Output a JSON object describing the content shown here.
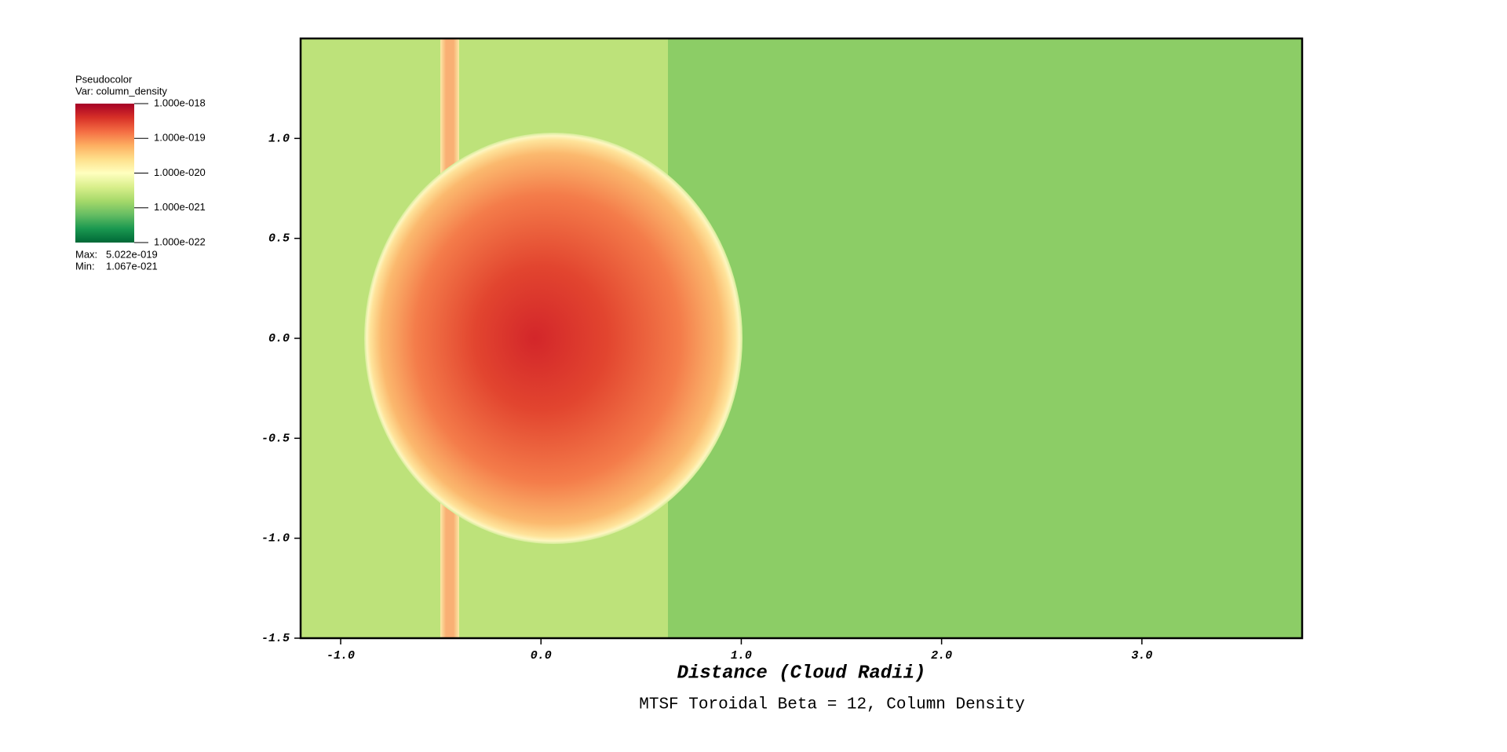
{
  "chart_data": {
    "type": "pseudocolor",
    "xlabel": "Distance (Cloud Radii)",
    "title": "MTSF Toroidal Beta = 12, Column Density",
    "xlim": [
      -1.2,
      3.8
    ],
    "ylim": [
      -1.5,
      1.5
    ],
    "xticks": [
      {
        "value": -1,
        "label": "-1.0"
      },
      {
        "value": 0,
        "label": "0.0"
      },
      {
        "value": 1,
        "label": "1.0"
      },
      {
        "value": 2,
        "label": "2.0"
      },
      {
        "value": 3,
        "label": "3.0"
      }
    ],
    "yticks": [
      {
        "value": 1,
        "label": "1.0"
      },
      {
        "value": 0.5,
        "label": "0.5"
      },
      {
        "value": 0,
        "label": "0.0"
      },
      {
        "value": -0.5,
        "label": "-0.5"
      },
      {
        "value": -1,
        "label": "-1.0"
      },
      {
        "value": -1.5,
        "label": "-1.5"
      }
    ],
    "legend": {
      "plot": "Pseudocolor",
      "var": "Var: column_density",
      "scale": "log",
      "colors": [
        "#a50026",
        "#d73027",
        "#f46d43",
        "#fdae61",
        "#fee08b",
        "#ffffbf",
        "#d9ef8b",
        "#a6d96a",
        "#66bd63",
        "#1a9850",
        "#006837"
      ],
      "ticks": [
        {
          "value": 1e-18,
          "label": "1.000e-018"
        },
        {
          "value": 1e-19,
          "label": "1.000e-019"
        },
        {
          "value": 1e-20,
          "label": "1.000e-020"
        },
        {
          "value": 1e-21,
          "label": "1.000e-021"
        },
        {
          "value": 1e-22,
          "label": "1.000e-022"
        }
      ],
      "max_label": "Max:",
      "max": {
        "value": 5.022e-19,
        "label": "5.022e-019"
      },
      "min_label": "Min:",
      "min": {
        "value": 1.067e-21,
        "label": "1.067e-021"
      }
    }
  }
}
